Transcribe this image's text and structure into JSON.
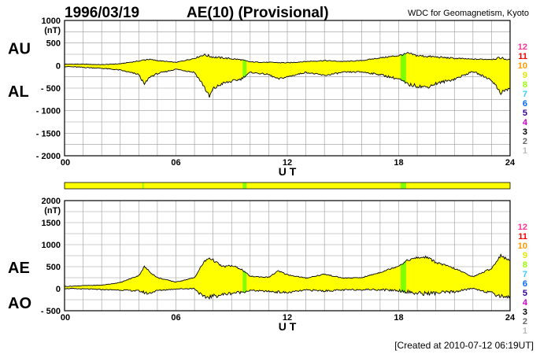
{
  "header": {
    "date": "1996/03/19",
    "title": "AE(10) (Provisional)",
    "source": "WDC for Geomagnetism, Kyoto"
  },
  "footer": {
    "created": "[Created at 2010-07-12 06:19UT]"
  },
  "colors": {
    "fill": "#ffff00",
    "highlight": "#7fff00",
    "line": "#000000",
    "grid": "#999999"
  },
  "station_count_legend": [
    {
      "label": "12",
      "color": "#ff3399"
    },
    {
      "label": "11",
      "color": "#ff0000"
    },
    {
      "label": "10",
      "color": "#ff9900"
    },
    {
      "label": "9",
      "color": "#e6e600"
    },
    {
      "label": "8",
      "color": "#99ff00"
    },
    {
      "label": "7",
      "color": "#33ccff"
    },
    {
      "label": "6",
      "color": "#0066ff"
    },
    {
      "label": "5",
      "color": "#330099"
    },
    {
      "label": "4",
      "color": "#cc00cc"
    },
    {
      "label": "3",
      "color": "#000000"
    },
    {
      "label": "2",
      "color": "#666666"
    },
    {
      "label": "1",
      "color": "#bbbbbb"
    }
  ],
  "chart_data": [
    {
      "type": "area",
      "title": "AU / AL",
      "xlabel": "U T",
      "ylabel": "(nT)",
      "xlim": [
        0,
        24
      ],
      "ylim": [
        -2000,
        1000
      ],
      "xticks": [
        "00",
        "06",
        "12",
        "18",
        "24"
      ],
      "yticks": [
        "1000",
        "500",
        "0",
        "- 500",
        "- 1000",
        "- 1500",
        "- 2000"
      ],
      "upper_label": "AU",
      "lower_label": "AL",
      "highlight_hours": [
        [
          9.6,
          9.8
        ],
        [
          18.1,
          18.4
        ]
      ],
      "series": [
        {
          "name": "AU",
          "x": [
            0,
            1,
            2,
            3,
            4,
            4.5,
            5,
            6,
            7,
            7.5,
            8,
            9,
            9.5,
            10,
            11,
            12,
            13,
            14,
            15,
            16,
            17,
            18,
            18.5,
            19,
            20,
            21,
            22,
            23,
            23.5,
            24
          ],
          "values": [
            30,
            30,
            20,
            40,
            100,
            140,
            110,
            70,
            160,
            240,
            190,
            150,
            130,
            80,
            70,
            60,
            90,
            110,
            90,
            110,
            170,
            220,
            270,
            220,
            190,
            160,
            140,
            140,
            170,
            120
          ]
        },
        {
          "name": "AL",
          "x": [
            0,
            1,
            2,
            3,
            4,
            4.3,
            4.6,
            5,
            6,
            7,
            7.5,
            7.8,
            8,
            8.5,
            9,
            9.5,
            10,
            11,
            11.5,
            12,
            13,
            14,
            15,
            16,
            17,
            18,
            18.5,
            19,
            19.5,
            20,
            21,
            22,
            23,
            23.5,
            24
          ],
          "values": [
            -20,
            -40,
            -60,
            -100,
            -200,
            -420,
            -250,
            -180,
            -80,
            -150,
            -450,
            -700,
            -520,
            -400,
            -350,
            -300,
            -150,
            -200,
            -300,
            -250,
            -150,
            -220,
            -150,
            -140,
            -200,
            -300,
            -420,
            -450,
            -480,
            -400,
            -300,
            -130,
            -320,
            -600,
            -500
          ]
        }
      ]
    },
    {
      "type": "area",
      "title": "AE / AO",
      "xlabel": "U T",
      "ylabel": "(nT)",
      "xlim": [
        0,
        24
      ],
      "ylim": [
        -500,
        2000
      ],
      "xticks": [
        "00",
        "06",
        "12",
        "18",
        "24"
      ],
      "yticks": [
        "2000",
        "1500",
        "1000",
        "500",
        "0",
        "- 500"
      ],
      "upper_label": "AE",
      "lower_label": "AO",
      "highlight_hours": [
        [
          9.6,
          9.8
        ],
        [
          18.1,
          18.4
        ]
      ],
      "series": [
        {
          "name": "AE",
          "x": [
            0,
            1,
            2,
            3,
            4,
            4.3,
            4.6,
            5,
            6,
            7,
            7.5,
            7.8,
            8,
            8.5,
            9,
            9.5,
            10,
            11,
            11.5,
            12,
            13,
            14,
            15,
            16,
            17,
            18,
            18.5,
            19,
            19.5,
            20,
            21,
            22,
            23,
            23.5,
            24
          ],
          "values": [
            50,
            70,
            80,
            140,
            300,
            500,
            380,
            250,
            150,
            250,
            600,
            700,
            650,
            500,
            520,
            450,
            280,
            260,
            400,
            320,
            240,
            330,
            240,
            250,
            370,
            520,
            650,
            700,
            720,
            600,
            460,
            270,
            460,
            760,
            620
          ]
        },
        {
          "name": "AO",
          "x": [
            0,
            1,
            2,
            3,
            4,
            4.5,
            5,
            6,
            7,
            7.5,
            8,
            9,
            9.5,
            10,
            11,
            12,
            13,
            14,
            15,
            16,
            17,
            18,
            18.5,
            19,
            20,
            21,
            22,
            23,
            23.5,
            24
          ],
          "values": [
            5,
            -5,
            -20,
            -30,
            -50,
            -110,
            -40,
            -5,
            5,
            -200,
            -170,
            -100,
            -80,
            -40,
            -60,
            -90,
            -30,
            -50,
            -30,
            -20,
            -20,
            -40,
            -70,
            -110,
            -100,
            -70,
            10,
            -100,
            -170,
            -180
          ]
        }
      ]
    }
  ]
}
